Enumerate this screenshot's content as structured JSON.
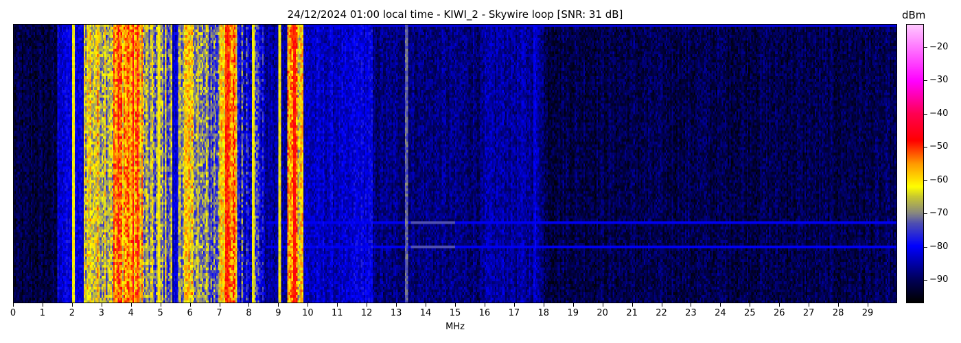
{
  "chart_data": {
    "type": "heatmap",
    "title": "24/12/2024 01:00 local time - KIWI_2 - Skywire loop [SNR: 31 dB]",
    "xlabel": "MHz",
    "colorbar_label": "dBm",
    "xlim": [
      0,
      30
    ],
    "x_ticks": [
      0,
      1,
      2,
      3,
      4,
      5,
      6,
      7,
      8,
      9,
      10,
      11,
      12,
      13,
      14,
      15,
      16,
      17,
      18,
      19,
      20,
      21,
      22,
      23,
      24,
      25,
      26,
      27,
      28,
      29
    ],
    "color_range": [
      -97,
      -13
    ],
    "colorbar_ticks": [
      -20,
      -30,
      -40,
      -50,
      -60,
      -70,
      -80,
      -90
    ],
    "colormap_stops": [
      {
        "dbm": -97,
        "color": "#000000"
      },
      {
        "dbm": -90,
        "color": "#00005a"
      },
      {
        "dbm": -80,
        "color": "#0000ff"
      },
      {
        "dbm": -73,
        "color": "#5050b0"
      },
      {
        "dbm": -70,
        "color": "#888880"
      },
      {
        "dbm": -65,
        "color": "#c8c830"
      },
      {
        "dbm": -62,
        "color": "#ffff00"
      },
      {
        "dbm": -55,
        "color": "#ff9900"
      },
      {
        "dbm": -48,
        "color": "#ff0000"
      },
      {
        "dbm": -40,
        "color": "#ff0050"
      },
      {
        "dbm": -30,
        "color": "#ff00ff"
      },
      {
        "dbm": -13,
        "color": "#ffc8ff"
      }
    ],
    "approx_mean_level_by_band": [
      {
        "from_mhz": 0,
        "to_mhz": 1.5,
        "dbm": -92
      },
      {
        "from_mhz": 1.5,
        "to_mhz": 2.4,
        "dbm": -82
      },
      {
        "from_mhz": 2.4,
        "to_mhz": 3.4,
        "dbm": -63
      },
      {
        "from_mhz": 3.4,
        "to_mhz": 4.4,
        "dbm": -55
      },
      {
        "from_mhz": 4.4,
        "to_mhz": 5.4,
        "dbm": -70
      },
      {
        "from_mhz": 5.4,
        "to_mhz": 5.6,
        "dbm": -82
      },
      {
        "from_mhz": 5.6,
        "to_mhz": 6.3,
        "dbm": -64
      },
      {
        "from_mhz": 6.3,
        "to_mhz": 7.0,
        "dbm": -72
      },
      {
        "from_mhz": 7.0,
        "to_mhz": 7.6,
        "dbm": -57
      },
      {
        "from_mhz": 7.6,
        "to_mhz": 8.5,
        "dbm": -78
      },
      {
        "from_mhz": 8.5,
        "to_mhz": 9.3,
        "dbm": -86
      },
      {
        "from_mhz": 9.3,
        "to_mhz": 9.85,
        "dbm": -58
      },
      {
        "from_mhz": 9.85,
        "to_mhz": 11.5,
        "dbm": -84
      },
      {
        "from_mhz": 11.5,
        "to_mhz": 12.2,
        "dbm": -82
      },
      {
        "from_mhz": 12.2,
        "to_mhz": 16,
        "dbm": -88
      },
      {
        "from_mhz": 16,
        "to_mhz": 18,
        "dbm": -86
      },
      {
        "from_mhz": 18,
        "to_mhz": 30,
        "dbm": -91
      }
    ],
    "strong_carriers_mhz": [
      {
        "mhz": 2.05,
        "dbm": -62
      },
      {
        "mhz": 4.95,
        "dbm": -62
      },
      {
        "mhz": 7.25,
        "dbm": -50
      },
      {
        "mhz": 8.15,
        "dbm": -62
      },
      {
        "mhz": 9.05,
        "dbm": -62
      },
      {
        "mhz": 9.55,
        "dbm": -48
      },
      {
        "mhz": 13.35,
        "dbm": -72
      },
      {
        "mhz": 17.7,
        "dbm": -82
      }
    ]
  }
}
